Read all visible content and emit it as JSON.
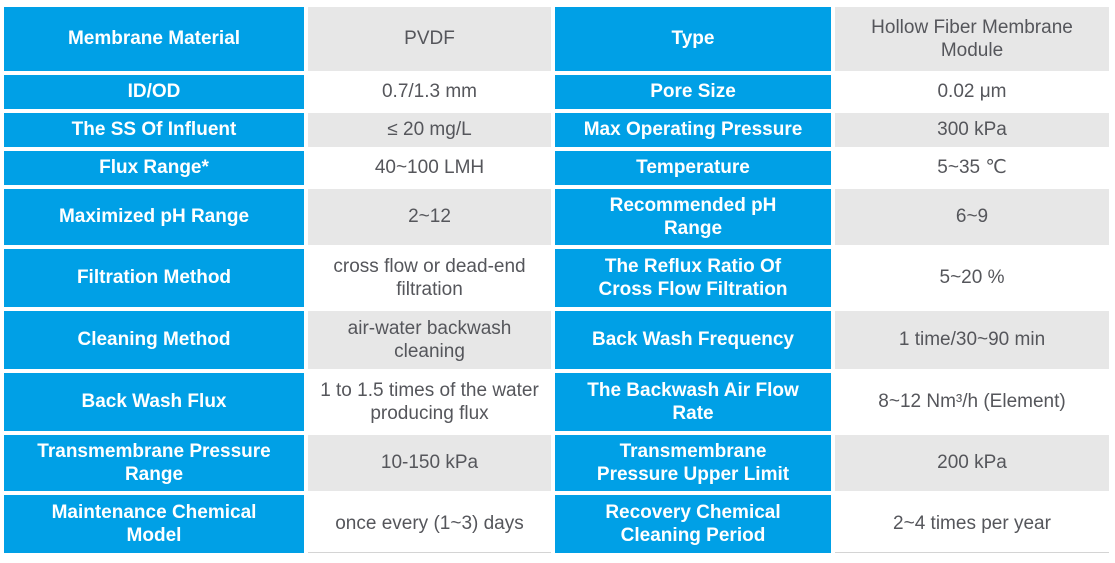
{
  "table": {
    "accent_color": "#00A0E6",
    "shaded_value_bg": "#E7E7E7",
    "value_text_color": "#55565B",
    "label_text_color": "#FFFFFF",
    "rows": [
      {
        "label1": "Membrane Material",
        "value1": "PVDF",
        "label2": "Type",
        "value2": "Hollow Fiber Membrane Module"
      },
      {
        "label1": "ID/OD",
        "value1": "0.7/1.3 mm",
        "label2": "Pore Size",
        "value2": "0.02 μm"
      },
      {
        "label1": "The SS Of Influent",
        "value1": "≤ 20 mg/L",
        "label2": "Max Operating Pressure",
        "value2": "300 kPa"
      },
      {
        "label1": "Flux Range*",
        "value1": "40~100 LMH",
        "label2": "Temperature",
        "value2": "5~35 ℃"
      },
      {
        "label1": "Maximized pH Range",
        "value1": "2~12",
        "label2": "Recommended pH Range",
        "value2": "6~9"
      },
      {
        "label1": "Filtration Method",
        "value1": "cross flow or dead-end filtration",
        "label2": "The Reflux Ratio Of Cross Flow Filtration",
        "value2": "5~20 %"
      },
      {
        "label1": "Cleaning Method",
        "value1": "air-water backwash cleaning",
        "label2": "Back Wash Frequency",
        "value2": "1 time/30~90 min"
      },
      {
        "label1": "Back Wash Flux",
        "value1": "1 to 1.5 times of the water producing flux",
        "label2": "The Backwash Air Flow Rate",
        "value2": "8~12 Nm³/h (Element)"
      },
      {
        "label1": "Transmembrane Pressure Range",
        "value1": "10-150 kPa",
        "label2": "Transmembrane Pressure Upper Limit",
        "value2": "200 kPa"
      },
      {
        "label1": "Maintenance Chemical Model",
        "value1": "once every (1~3) days",
        "label2": "Recovery Chemical Cleaning Period",
        "value2": "2~4 times per year"
      }
    ]
  }
}
